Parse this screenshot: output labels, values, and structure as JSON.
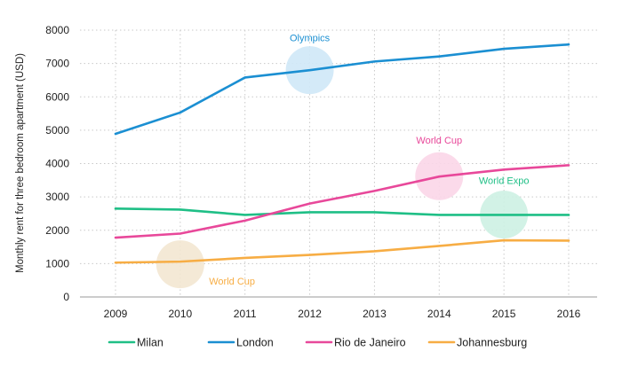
{
  "chart_data": {
    "type": "line",
    "title": "",
    "xlabel": "",
    "ylabel": "Monthly rent for three bedroom apartment (USD)",
    "x": [
      "2009",
      "2010",
      "2011",
      "2012",
      "2013",
      "2014",
      "2015",
      "2016"
    ],
    "ylim": [
      0,
      8000
    ],
    "yticks": [
      0,
      1000,
      2000,
      3000,
      4000,
      5000,
      6000,
      7000,
      8000
    ],
    "grid": true,
    "legend_position": "bottom",
    "series": [
      {
        "name": "Milan",
        "color": "#1fbf86",
        "values": [
          2650,
          2620,
          2460,
          2540,
          2540,
          2460,
          2460,
          2460
        ]
      },
      {
        "name": "London",
        "color": "#1b8fd2",
        "values": [
          4890,
          5530,
          6580,
          6800,
          7060,
          7210,
          7440,
          7570
        ]
      },
      {
        "name": "Rio de Janeiro",
        "color": "#e8489a",
        "values": [
          1780,
          1900,
          2290,
          2800,
          3180,
          3610,
          3820,
          3950
        ]
      },
      {
        "name": "Johannesburg",
        "color": "#f7ad44",
        "values": [
          1030,
          1060,
          1170,
          1260,
          1370,
          1530,
          1700,
          1690
        ]
      }
    ],
    "annotations": [
      {
        "text": "Olympics",
        "x": "2012",
        "y": 6800,
        "text_x": "2012",
        "text_y": 7780,
        "color": "#1b8fd2",
        "fill": "#cfe8f7"
      },
      {
        "text": "World Cup",
        "x": "2014",
        "y": 3620,
        "text_x": "2014",
        "text_y": 4700,
        "color": "#e8489a",
        "fill": "#fbd6e8"
      },
      {
        "text": "World Expo",
        "x": "2015",
        "y": 2470,
        "text_x": "2015",
        "text_y": 3500,
        "color": "#1fbf86",
        "fill": "#cdf1e3"
      },
      {
        "text": "World Cup",
        "x": "2010",
        "y": 980,
        "text_x": "2010.8",
        "text_y": 480,
        "color": "#f7ad44",
        "fill": "#f3e7d2"
      }
    ]
  }
}
